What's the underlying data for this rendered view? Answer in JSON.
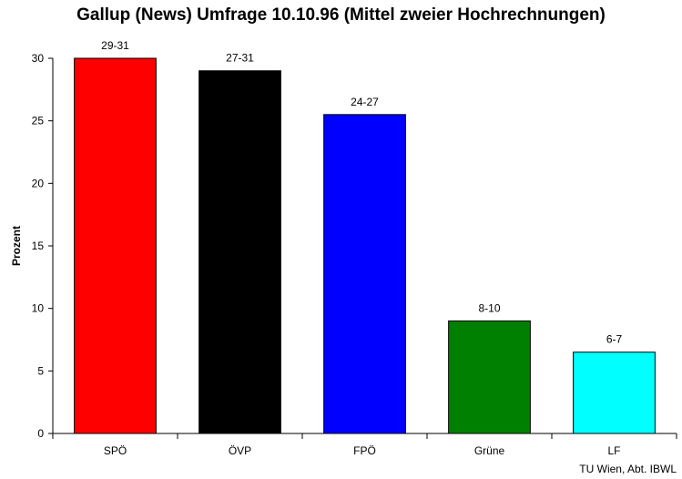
{
  "chart_data": {
    "type": "bar",
    "title": "Gallup (News) Umfrage 10.10.96 (Mittel zweier Hochrechnungen)",
    "xlabel": "",
    "ylabel": "Prozent",
    "ylim": [
      0,
      30
    ],
    "yticks": [
      "0",
      "5",
      "10",
      "15",
      "20",
      "25",
      "30"
    ],
    "categories": [
      "SPÖ",
      "ÖVP",
      "FPÖ",
      "Grüne",
      "LF"
    ],
    "values": [
      30,
      29,
      25.5,
      9,
      6.5
    ],
    "data_labels": [
      "29-31",
      "27-31",
      "24-27",
      "8-10",
      "6-7"
    ],
    "colors": [
      "#ff0000",
      "#000000",
      "#0000ff",
      "#008000",
      "#00ffff"
    ],
    "grid": false,
    "legend": "none"
  },
  "footer": {
    "source": "TU Wien, Abt. IBWL"
  }
}
